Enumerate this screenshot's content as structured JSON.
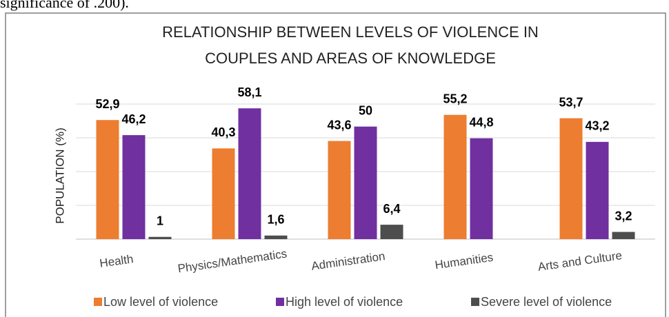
{
  "caption": "significance of .200).",
  "chart_data": {
    "type": "bar",
    "title": [
      "RELATIONSHIP BETWEEN LEVELS OF VIOLENCE IN",
      "COUPLES AND AREAS OF KNOWLEDGE"
    ],
    "y_label": "POPULATION (%)",
    "categories": [
      "Health",
      "Physics/Mathematics",
      "Administration",
      "Humanities",
      "Arts and Culture"
    ],
    "series": [
      {
        "name": "Low level of violence",
        "color": "#ed7d31",
        "values": [
          52.9,
          40.3,
          43.6,
          55.2,
          53.7
        ],
        "value_labels": [
          "52,9",
          "40,3",
          "43,6",
          "55,2",
          "53,7"
        ]
      },
      {
        "name": "High level of violence",
        "color": "#7030a0",
        "values": [
          46.2,
          58.1,
          50,
          44.8,
          43.2
        ],
        "value_labels": [
          "46,2",
          "58,1",
          "50",
          "44,8",
          "43,2"
        ]
      },
      {
        "name": "Severe level of violence",
        "color": "#4d4d4d",
        "values": [
          1,
          1.6,
          6.4,
          null,
          3.2
        ],
        "value_labels": [
          "1",
          "1,6",
          "6,4",
          null,
          "3,2"
        ]
      }
    ],
    "ylim": [
      0,
      60
    ],
    "yticks": [
      0,
      15,
      30,
      45,
      60
    ],
    "grid": true,
    "legend": "bottom"
  }
}
